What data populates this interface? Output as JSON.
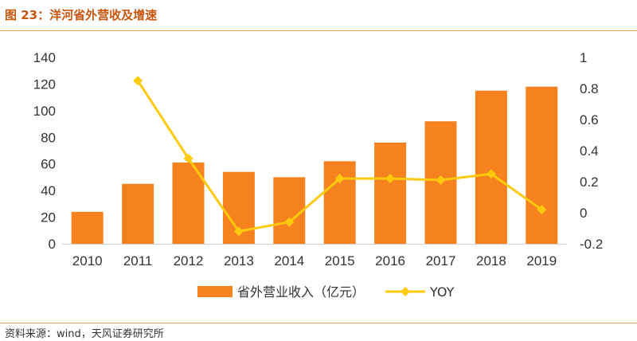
{
  "figure": {
    "title": "图 23：洋河省外营收及增速",
    "source": "资料来源：wind，天风证券研究所"
  },
  "colors": {
    "bar": "#f5821f",
    "line": "#ffc90e",
    "rule": "#f0a560",
    "title": "#c8560e"
  },
  "chart_data": {
    "type": "bar",
    "categories": [
      "2010",
      "2011",
      "2012",
      "2013",
      "2014",
      "2015",
      "2016",
      "2017",
      "2018",
      "2019"
    ],
    "series": [
      {
        "name": "省外营业收入（亿元）",
        "type": "bar",
        "axis": "left",
        "values": [
          24,
          45,
          61,
          54,
          50,
          62,
          76,
          92,
          115,
          118
        ]
      },
      {
        "name": "YOY",
        "type": "line",
        "axis": "right",
        "values": [
          null,
          0.85,
          0.35,
          -0.12,
          -0.06,
          0.22,
          0.22,
          0.21,
          0.25,
          0.02
        ]
      }
    ],
    "ylim_left": [
      0,
      140
    ],
    "yticks_left": [
      "0",
      "20",
      "40",
      "60",
      "80",
      "100",
      "120",
      "140"
    ],
    "ylim_right": [
      -0.2,
      1
    ],
    "yticks_right": [
      "-0.2",
      "0",
      "0.2",
      "0.4",
      "0.6",
      "0.8",
      "1"
    ],
    "grid": false,
    "legend_position": "bottom"
  }
}
